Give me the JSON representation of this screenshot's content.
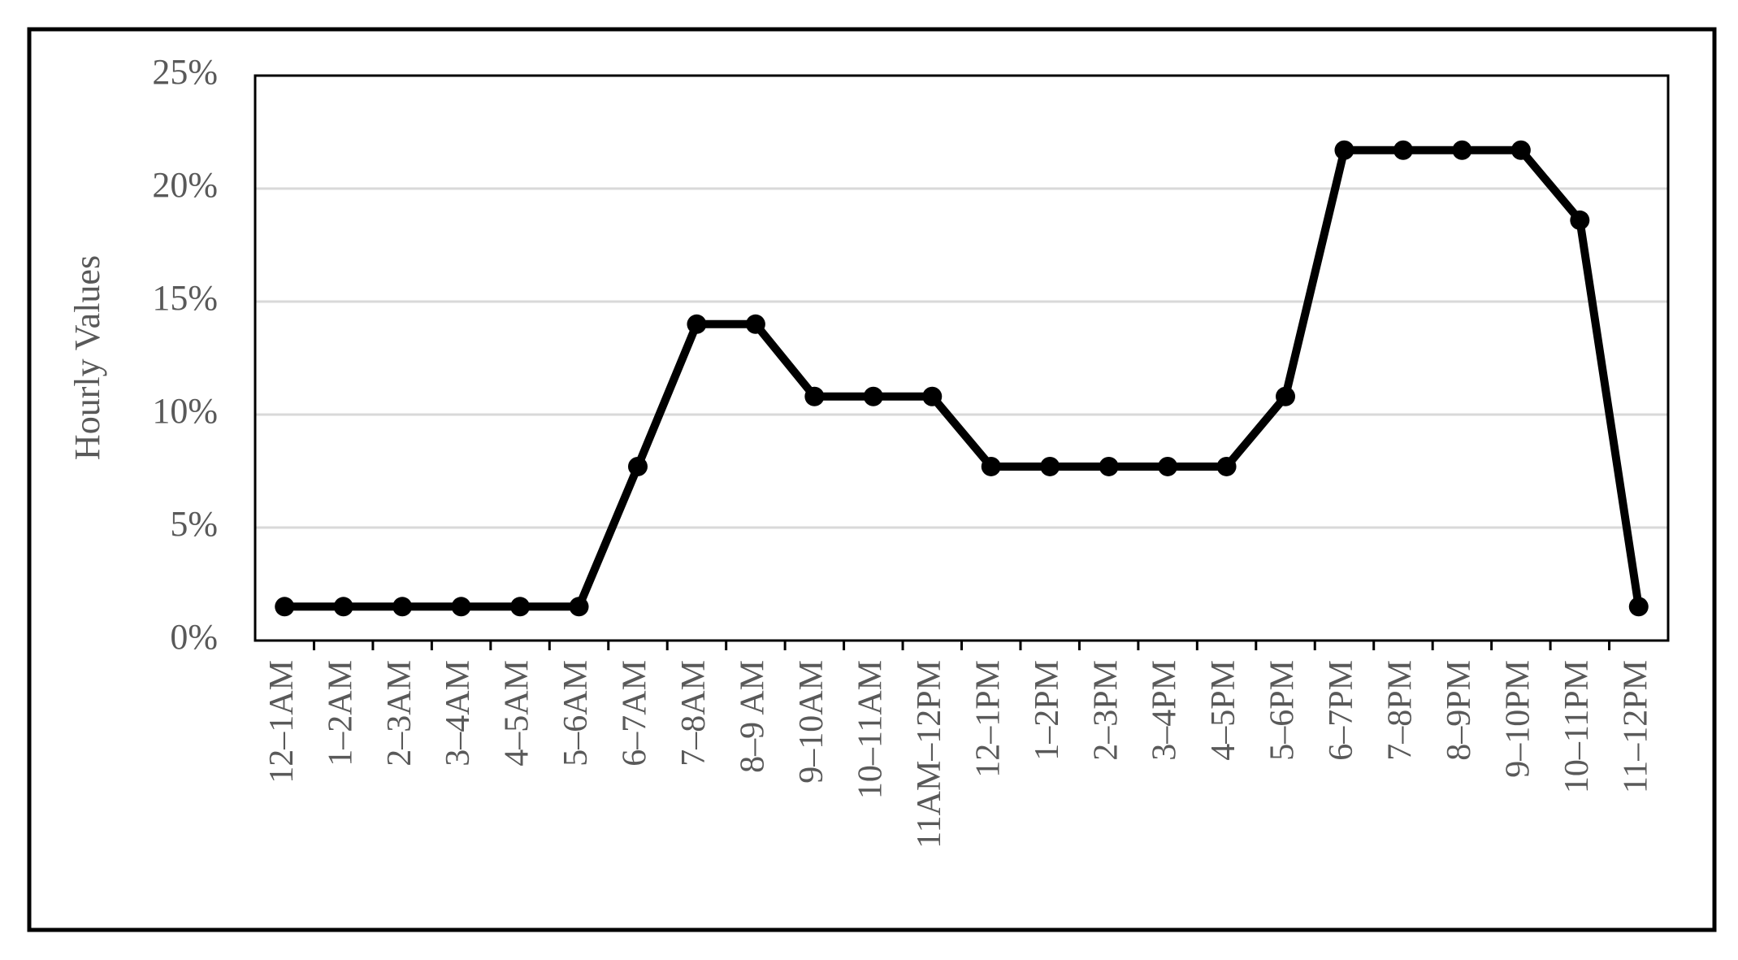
{
  "chart_data": {
    "type": "line",
    "y_label": "Hourly Values",
    "categories": [
      "12–1AM",
      "1–2AM",
      "2–3AM",
      "3–4AM",
      "4–5AM",
      "5–6AM",
      "6–7AM",
      "7–8AM",
      "8–9 AM",
      "9–10AM",
      "10–11AM",
      "11AM–12PM",
      "12–1PM",
      "1–2PM",
      "2–3PM",
      "3–4PM",
      "4–5PM",
      "5–6PM",
      "6–7PM",
      "7–8PM",
      "8–9PM",
      "9–10PM",
      "10–11PM",
      "11–12PM"
    ],
    "values": [
      1.5,
      1.5,
      1.5,
      1.5,
      1.5,
      1.5,
      7.7,
      14,
      14,
      10.8,
      10.8,
      10.8,
      7.7,
      7.7,
      7.7,
      7.7,
      7.7,
      10.8,
      21.7,
      21.7,
      21.7,
      21.7,
      18.6,
      1.5
    ],
    "color": "#000000",
    "ylim": [
      0,
      25
    ],
    "yticks": [
      {
        "value": 0,
        "label": "0%"
      },
      {
        "value": 5,
        "label": "5%"
      },
      {
        "value": 10,
        "label": "10%"
      },
      {
        "value": 15,
        "label": "15%"
      },
      {
        "value": 20,
        "label": "20%"
      },
      {
        "value": 25,
        "label": "25%"
      }
    ],
    "grid": true
  }
}
